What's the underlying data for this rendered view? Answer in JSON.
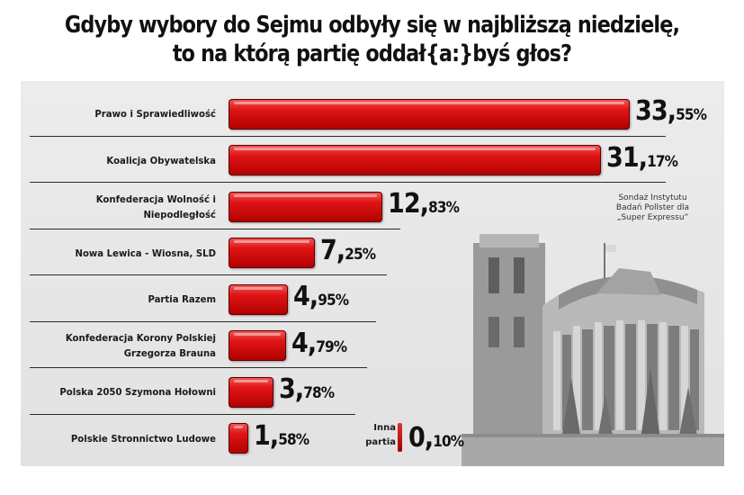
{
  "chart_data": {
    "type": "bar",
    "orientation": "horizontal",
    "title_line1": "Gdyby wybory do Sejmu odbyły się w najbliższą niedzielę,",
    "title_line2": "to na którą partię oddał{a:}byś głos?",
    "source": [
      "Sondaż Instytutu",
      "Badań Pollster dla",
      "„Super Expressu”"
    ],
    "categories": [
      [
        "Prawo i Sprawiedliwość"
      ],
      [
        "Koalicja Obywatelska"
      ],
      [
        "Konfederacja Wolność i",
        "Niepodległość"
      ],
      [
        "Nowa Lewica - Wiosna, SLD"
      ],
      [
        "Partia Razem"
      ],
      [
        "Konfederacja Korony Polskiej",
        "Grzegorza Brauna"
      ],
      [
        "Polska 2050 Szymona Hołowni"
      ],
      [
        "Polskie Stronnictwo Ludowe"
      ]
    ],
    "values": [
      33.55,
      31.17,
      12.83,
      7.25,
      4.95,
      4.79,
      3.78,
      1.58
    ],
    "value_labels": [
      {
        "int": "33,",
        "dec": "55%"
      },
      {
        "int": "31,",
        "dec": "17%"
      },
      {
        "int": "12,",
        "dec": "83%"
      },
      {
        "int": "7,",
        "dec": "25%"
      },
      {
        "int": "4,",
        "dec": "95%"
      },
      {
        "int": "4,",
        "dec": "79%"
      },
      {
        "int": "3,",
        "dec": "78%"
      },
      {
        "int": "1,",
        "dec": "58%"
      }
    ],
    "other": {
      "label": [
        "Inna",
        "partia"
      ],
      "value": 0.1,
      "value_label": {
        "int": "0,",
        "dec": "10%"
      }
    },
    "bar_color": "#d10000",
    "xlim": [
      0,
      33.55
    ]
  }
}
